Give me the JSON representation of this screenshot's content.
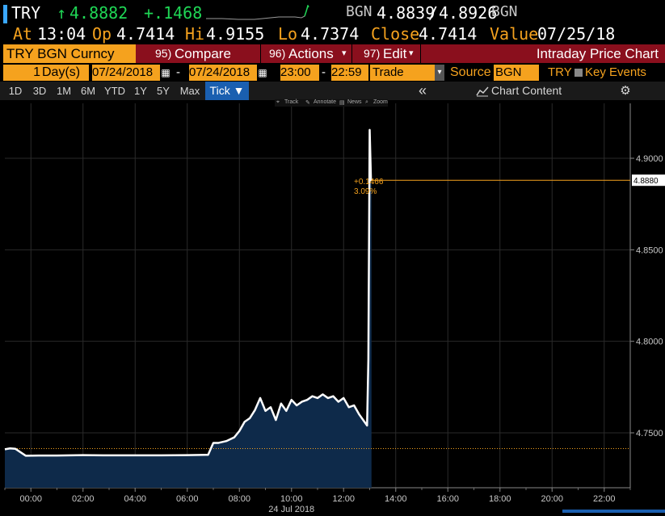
{
  "header": {
    "ticker": "TRY",
    "last_arrow": "↑",
    "last": "4.8882",
    "change": "+.1468",
    "bid_ask_src": "BGN",
    "bid": "4.8839",
    "slash": "/",
    "ask": "4.8926",
    "bid_ask_src2": "BGN"
  },
  "quote": {
    "at_label": "At",
    "at_time": "13:04",
    "op_label": "Op",
    "op": "4.7414",
    "hi_label": "Hi",
    "hi": "4.9155",
    "lo_label": "Lo",
    "lo": "4.7374",
    "close_label": "Close",
    "close": "4.7414",
    "value_label": "Value",
    "value": "07/25/18"
  },
  "menubar": {
    "security": "TRY BGN Curncy",
    "compare_num": "95)",
    "compare": "Compare",
    "actions_num": "96)",
    "actions": "Actions",
    "edit_num": "97)",
    "edit": "Edit",
    "title": "Intraday Price Chart"
  },
  "settings": {
    "days_value": "1",
    "days_label": "Day(s)",
    "start_date": "07/24/2018",
    "dash": "-",
    "end_date": "07/24/2018",
    "start_time": "23:00",
    "end_time": "22:59",
    "dash2": "-",
    "field": "Trade",
    "source_label": "Source",
    "source": "BGN",
    "currency": "TRY",
    "key_events": "Key Events"
  },
  "periods": [
    "1D",
    "3D",
    "1M",
    "6M",
    "YTD",
    "1Y",
    "5Y",
    "Max"
  ],
  "tick_label": "Tick ▼",
  "collapse": "«",
  "chart_content": "Chart Content",
  "toolbar": [
    "Track",
    "Annotate",
    "News",
    "Zoom"
  ],
  "colors": {
    "orange": "#f5a21e",
    "maroon": "#8a0f1d",
    "green": "#1fd655",
    "selected_tab": "#1a5fb0",
    "area_fill": "#0e2a4a"
  },
  "annotation": {
    "change": "+0.1466",
    "pct": "3.09%"
  },
  "chart_data": {
    "type": "area",
    "title": "",
    "xlabel": "24 Jul 2018",
    "ylabel": "",
    "x_ticks": [
      "00:00",
      "02:00",
      "04:00",
      "06:00",
      "08:00",
      "10:00",
      "12:00",
      "14:00",
      "16:00",
      "18:00",
      "20:00",
      "22:00"
    ],
    "y_ticks": [
      "4.9000",
      "4.8500",
      "4.8000",
      "4.7500"
    ],
    "ylim": [
      4.72,
      4.93
    ],
    "xlim_hours": [
      -1,
      23
    ],
    "last_price_label": "4.8880",
    "reference_line": 4.7414,
    "series": [
      {
        "x": [
          -1,
          -0.8,
          -0.6,
          -0.2,
          0.3,
          1,
          2,
          3,
          4,
          5,
          6,
          6.8,
          7,
          7.2,
          7.5,
          7.8,
          8,
          8.2,
          8.4,
          8.6,
          8.8,
          9,
          9.2,
          9.4,
          9.6,
          9.8,
          10,
          10.2,
          10.4,
          10.6,
          10.8,
          11,
          11.2,
          11.4,
          11.6,
          11.8,
          12,
          12.2,
          12.4,
          12.6,
          12.8,
          12.9,
          12.95,
          13.0,
          13.05,
          13.07
        ],
        "y": [
          4.741,
          4.7415,
          4.7413,
          4.7375,
          4.7376,
          4.7376,
          4.7378,
          4.7377,
          4.7377,
          4.7377,
          4.7378,
          4.738,
          4.7445,
          4.7445,
          4.7455,
          4.7475,
          4.751,
          4.756,
          4.758,
          4.7625,
          4.769,
          4.762,
          4.764,
          4.757,
          4.766,
          4.762,
          4.768,
          4.765,
          4.767,
          4.768,
          4.77,
          4.769,
          4.771,
          4.769,
          4.77,
          4.767,
          4.769,
          4.764,
          4.765,
          4.76,
          4.756,
          4.754,
          4.79,
          4.9155,
          4.888,
          4.8882
        ]
      }
    ],
    "grid": true
  }
}
